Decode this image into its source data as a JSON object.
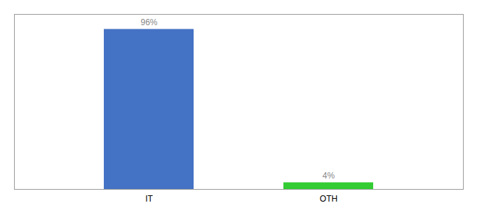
{
  "chart_data": {
    "type": "bar",
    "categories": [
      "IT",
      "OTH"
    ],
    "values": [
      96,
      4
    ],
    "value_labels": [
      "96%",
      "4%"
    ],
    "colors": [
      "#4472c4",
      "#33cc33"
    ],
    "ylim": [
      0,
      105
    ],
    "data_labels": true,
    "tick_labels": "x",
    "grid": false
  }
}
